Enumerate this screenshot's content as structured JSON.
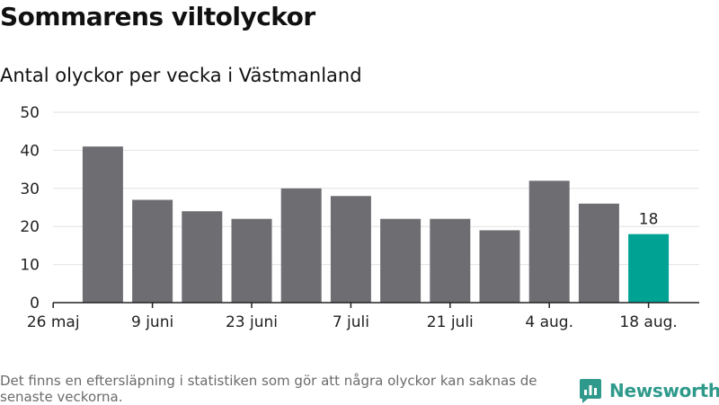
{
  "chart_data": {
    "type": "bar",
    "title": "Sommarens viltolyckor",
    "subtitle": "Antal olyckor per vecka i Västmanland",
    "values": [
      41,
      27,
      24,
      22,
      30,
      28,
      22,
      22,
      19,
      32,
      26,
      18
    ],
    "highlight_index": 11,
    "highlight_label": "18",
    "x_tick_labels": [
      "26 maj",
      "9 juni",
      "23 juni",
      "7 juli",
      "21 juli",
      "4 aug.",
      "18 aug."
    ],
    "ylim": [
      0,
      50
    ],
    "y_ticks": [
      0,
      10,
      20,
      30,
      40,
      50
    ],
    "grid": true,
    "colors": {
      "bar": "#6e6d72",
      "highlight": "#00a393",
      "grid": "#e2e2e2",
      "axis": "#222222"
    }
  },
  "footnote": "Det finns en eftersläpning i statistiken som gör att några olyckor kan saknas de senaste veckorna.",
  "logo": {
    "text": "Newsworthy",
    "icon": "bar-chart-logo-icon",
    "color": "#2f9a8c"
  }
}
